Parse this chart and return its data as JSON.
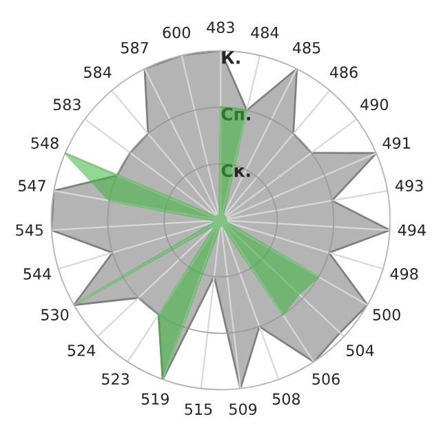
{
  "chart_data": {
    "type": "radar",
    "categories": [
      "483",
      "484",
      "485",
      "486",
      "490",
      "491",
      "493",
      "494",
      "498",
      "500",
      "504",
      "506",
      "508",
      "509",
      "515",
      "519",
      "523",
      "524",
      "530",
      "544",
      "545",
      "547",
      "548",
      "583",
      "584",
      "587",
      "600"
    ],
    "ylim": [
      0,
      3
    ],
    "yticks": [
      {
        "value": 1,
        "label": "Ск."
      },
      {
        "value": 2,
        "label": "Сп."
      },
      {
        "value": 3,
        "label": "К."
      }
    ],
    "grid": true,
    "series": [
      {
        "color": "#b4b4b4",
        "values": [
          3,
          2,
          3,
          2,
          2,
          3,
          2,
          3,
          2,
          3,
          2.9,
          3,
          2,
          3,
          1,
          3,
          2,
          2,
          3,
          2,
          3,
          3,
          2,
          2,
          2,
          3,
          3
        ]
      },
      {
        "color": "#3cb43c",
        "values": [
          2,
          2,
          0.1,
          0.1,
          0.1,
          0.1,
          0.1,
          0.1,
          0.1,
          2,
          1.9,
          2,
          0.1,
          0.1,
          0.1,
          3,
          2,
          0.1,
          3,
          0.1,
          0.1,
          2,
          3,
          0.1,
          0.1,
          0.1,
          0.1
        ]
      }
    ]
  }
}
